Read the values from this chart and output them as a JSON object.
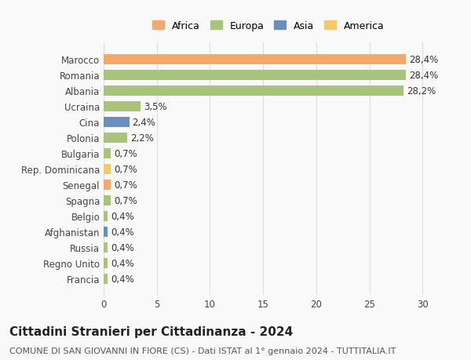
{
  "categories": [
    "Francia",
    "Regno Unito",
    "Russia",
    "Afghanistan",
    "Belgio",
    "Spagna",
    "Senegal",
    "Rep. Dominicana",
    "Bulgaria",
    "Polonia",
    "Cina",
    "Ucraina",
    "Albania",
    "Romania",
    "Marocco"
  ],
  "values": [
    0.4,
    0.4,
    0.4,
    0.4,
    0.4,
    0.7,
    0.7,
    0.7,
    0.7,
    2.2,
    2.4,
    3.5,
    28.2,
    28.4,
    28.4
  ],
  "labels": [
    "0,4%",
    "0,4%",
    "0,4%",
    "0,4%",
    "0,4%",
    "0,7%",
    "0,7%",
    "0,7%",
    "0,7%",
    "2,2%",
    "2,4%",
    "3,5%",
    "28,2%",
    "28,4%",
    "28,4%"
  ],
  "colors": [
    "#a8c47a",
    "#a8c47a",
    "#a8c47a",
    "#6b8fbd",
    "#a8c47a",
    "#a8c47a",
    "#f4a86a",
    "#f4c96a",
    "#a8c47a",
    "#a8c47a",
    "#6b8fbd",
    "#a8c47a",
    "#a8c47a",
    "#a8c47a",
    "#f4a86a"
  ],
  "continents": [
    "Europa",
    "Europa",
    "Europa",
    "Asia",
    "Europa",
    "Europa",
    "Africa",
    "America",
    "Europa",
    "Europa",
    "Asia",
    "Europa",
    "Europa",
    "Europa",
    "Africa"
  ],
  "legend_labels": [
    "Africa",
    "Europa",
    "Asia",
    "America"
  ],
  "legend_colors": [
    "#f4a86a",
    "#a8c47a",
    "#6b8fbd",
    "#f4c96a"
  ],
  "title": "Cittadini Stranieri per Cittadinanza - 2024",
  "subtitle": "COMUNE DI SAN GIOVANNI IN FIORE (CS) - Dati ISTAT al 1° gennaio 2024 - TUTTITALIA.IT",
  "xlim": [
    0,
    31
  ],
  "xticks": [
    0,
    5,
    10,
    15,
    20,
    25,
    30
  ],
  "bg_color": "#f9f9f9",
  "grid_color": "#dddddd",
  "bar_height": 0.65,
  "label_fontsize": 8.5,
  "tick_fontsize": 8.5,
  "title_fontsize": 11,
  "subtitle_fontsize": 8
}
